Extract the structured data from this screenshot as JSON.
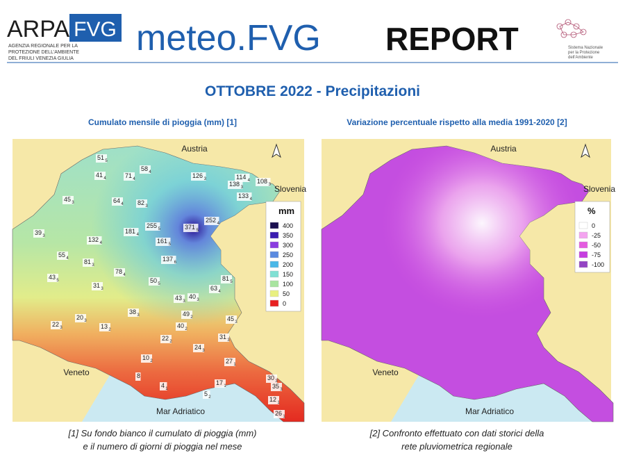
{
  "header": {
    "logo_left": "ARPA",
    "logo_box": "FVG",
    "logo_lines": [
      "AGENZIA REGIONALE PER LA",
      "PROTEZIONE DELL'AMBIENTE",
      "DEL FRIULI VENEZIA GIULIA"
    ],
    "brand_main": "meteo.FVG",
    "brand_report": "REPORT",
    "logo_right": [
      "Sistema Nazionale",
      "per la Protezione",
      "dell'Ambiente"
    ]
  },
  "title": "OTTOBRE 2022 - Precipitazioni",
  "panels": [
    {
      "subtitle": "Cumulato mensile di pioggia (mm) [1]",
      "labels": {
        "north": "Austria",
        "east": "Slovenia",
        "west": "Veneto",
        "sea": "Mar Adriatico"
      },
      "legend": {
        "title": "mm",
        "items": [
          {
            "label": 400,
            "color": "#1b1050"
          },
          {
            "label": 350,
            "color": "#3a1cb0"
          },
          {
            "label": 300,
            "color": "#8a3ce0"
          },
          {
            "label": 250,
            "color": "#5a8ae0"
          },
          {
            "label": 200,
            "color": "#4ab8e8"
          },
          {
            "label": 150,
            "color": "#80e0d4"
          },
          {
            "label": 100,
            "color": "#a8e4a0"
          },
          {
            "label": 50,
            "color": "#e8f080"
          },
          {
            "label": 0,
            "color": "#e82020"
          }
        ]
      },
      "stations": [
        {
          "value": 51,
          "days": 5
        },
        {
          "value": 41,
          "days": 4
        },
        {
          "value": 71,
          "days": 4
        },
        {
          "value": 58,
          "days": 4
        },
        {
          "value": 126,
          "days": 3
        },
        {
          "value": 114,
          "days": 4
        },
        {
          "value": 138,
          "days": 3
        },
        {
          "value": 108,
          "days": 3
        },
        {
          "value": 133,
          "days": 4
        },
        {
          "value": 45,
          "days": 3
        },
        {
          "value": 64,
          "days": 4
        },
        {
          "value": 82,
          "days": 3
        },
        {
          "value": 255,
          "days": 5
        },
        {
          "value": 371,
          "days": 5
        },
        {
          "value": 252,
          "days": 4
        },
        {
          "value": 39,
          "days": 3
        },
        {
          "value": 132,
          "days": 4
        },
        {
          "value": 181,
          "days": 4
        },
        {
          "value": 161,
          "days": 5
        },
        {
          "value": 55,
          "days": 4
        },
        {
          "value": 81,
          "days": 3
        },
        {
          "value": 137,
          "days": 6
        },
        {
          "value": 78,
          "days": 4
        },
        {
          "value": 43,
          "days": 5
        },
        {
          "value": 81,
          "days": 5
        },
        {
          "value": 50,
          "days": 5
        },
        {
          "value": 31,
          "days": 3
        },
        {
          "value": 63,
          "days": 4
        },
        {
          "value": 43,
          "days": 3
        },
        {
          "value": 40,
          "days": 3
        },
        {
          "value": 38,
          "days": 3
        },
        {
          "value": 49,
          "days": 2
        },
        {
          "value": 45,
          "days": 3
        },
        {
          "value": 22,
          "days": 3
        },
        {
          "value": 20,
          "days": 3
        },
        {
          "value": 13,
          "days": 2
        },
        {
          "value": 40,
          "days": 2
        },
        {
          "value": 22,
          "days": 2
        },
        {
          "value": 31,
          "days": 3
        },
        {
          "value": 24,
          "days": 3
        },
        {
          "value": 10,
          "days": 2
        },
        {
          "value": 27,
          "days": 1
        },
        {
          "value": 8
        },
        {
          "value": 4,
          "days": 1
        },
        {
          "value": 17,
          "days": 1
        },
        {
          "value": 5,
          "days": 2
        },
        {
          "value": 30,
          "days": 3
        },
        {
          "value": 35,
          "days": 3
        },
        {
          "value": 12,
          "days": 1
        },
        {
          "value": 26,
          "days": 1
        }
      ],
      "caption": [
        "[1] Su fondo bianco il cumulato di pioggia (mm)",
        "e il numero di giorni di pioggia nel mese"
      ]
    },
    {
      "subtitle": "Variazione percentuale rispetto alla media 1991-2020 [2]",
      "labels": {
        "north": "Austria",
        "east": "Slovenia",
        "west": "Veneto",
        "sea": "Mar Adriatico"
      },
      "legend": {
        "title": "%",
        "items": [
          {
            "label": 0,
            "color": "#ffffff"
          },
          {
            "label": -25,
            "color": "#f4a4f0"
          },
          {
            "label": -50,
            "color": "#e45ce0"
          },
          {
            "label": -75,
            "color": "#c63ee0"
          },
          {
            "label": -100,
            "color": "#9444c4"
          }
        ]
      },
      "caption": [
        "[2] Confronto effettuato con dati storici della",
        "rete pluviometrica regionale"
      ]
    }
  ]
}
